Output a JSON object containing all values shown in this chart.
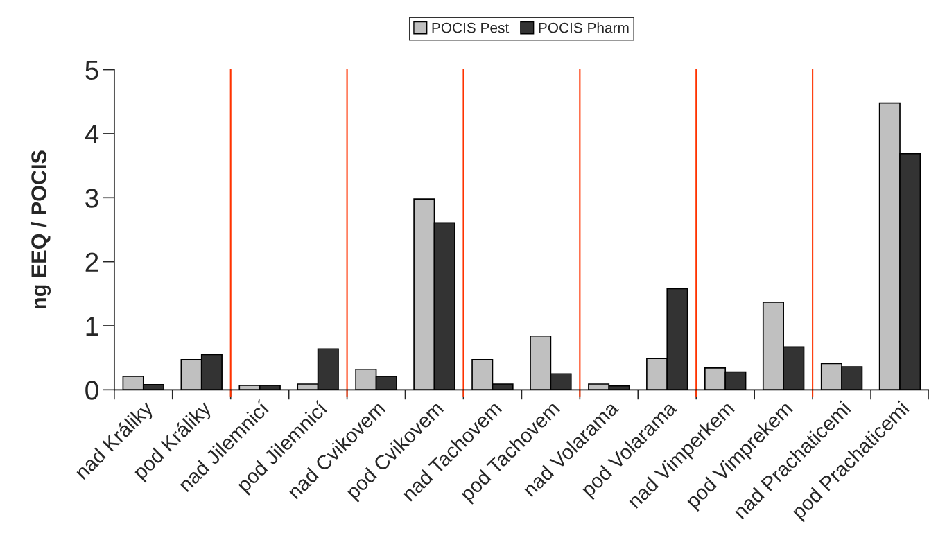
{
  "chart_data": {
    "type": "bar",
    "ylabel": "ng EEQ / POCIS",
    "categories": [
      "nad Králiky",
      "pod Králiky",
      "nad Jilemnicí",
      "pod Jilemnicí",
      "nad Cvikovem",
      "pod Cvikovem",
      "nad Tachovem",
      "pod Tachovem",
      "nad Volarama",
      "pod Volarama",
      "nad Vimperkem",
      "pod Vimprekem",
      "nad Prachaticemi",
      "pod Prachaticemi"
    ],
    "series": [
      {
        "name": "POCIS Pest",
        "color": "#c0c0c0",
        "values": [
          0.21,
          0.47,
          0.07,
          0.09,
          0.32,
          2.98,
          0.47,
          0.84,
          0.09,
          0.49,
          0.34,
          1.37,
          0.41,
          4.48
        ]
      },
      {
        "name": "POCIS Pharm",
        "color": "#333333",
        "values": [
          0.08,
          0.55,
          0.07,
          0.64,
          0.21,
          2.61,
          0.09,
          0.25,
          0.06,
          1.58,
          0.28,
          0.67,
          0.36,
          3.69
        ]
      }
    ],
    "ylim": [
      0,
      5
    ],
    "yticks": [
      0,
      1,
      2,
      3,
      4,
      5
    ],
    "legend": "top",
    "grid": false
  }
}
